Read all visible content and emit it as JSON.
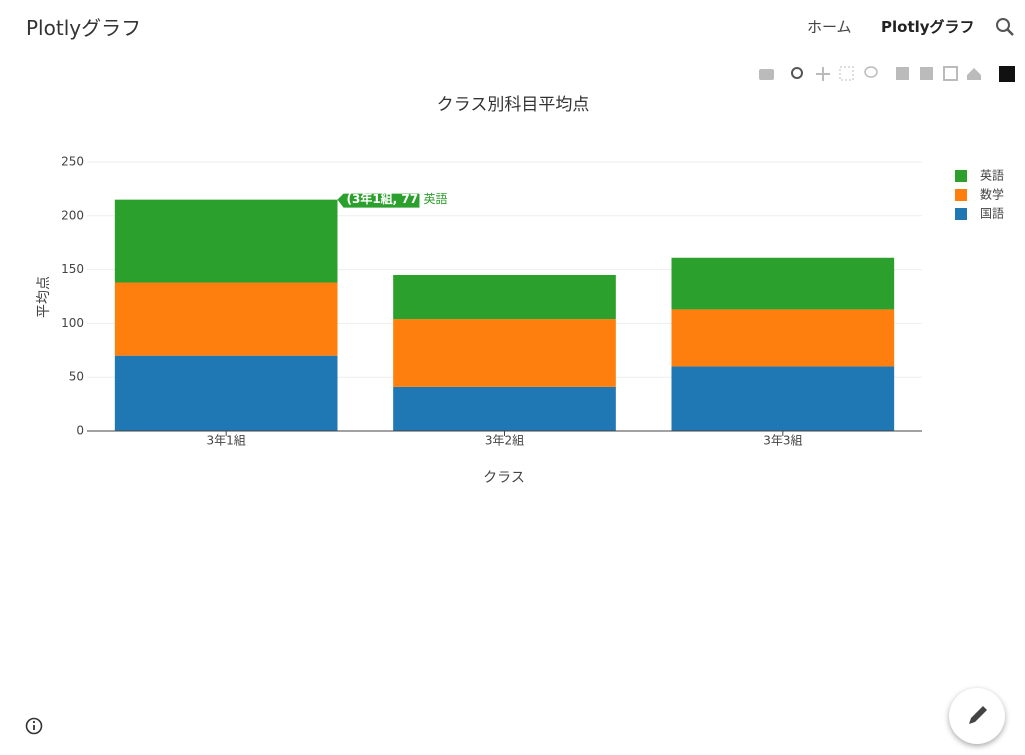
{
  "header": {
    "brand": "Plotlyグラフ",
    "nav": [
      "ホーム",
      "Plotlyグラフ"
    ]
  },
  "chart_data": {
    "type": "stacked_bar",
    "title": "クラス別科目平均点",
    "x_label": "クラス",
    "y_label": "平均点",
    "categories": [
      "3年1組",
      "3年2組",
      "3年3組"
    ],
    "series": [
      {
        "name": "国語",
        "color": "#1f77b4",
        "values": [
          70,
          41,
          60
        ]
      },
      {
        "name": "数学",
        "color": "#ff7f0e",
        "values": [
          68,
          63,
          53
        ]
      },
      {
        "name": "英語",
        "color": "#2ca02c",
        "values": [
          77,
          41,
          48
        ]
      }
    ],
    "ylim": [
      0,
      250
    ],
    "yticks": [
      0,
      50,
      100,
      150,
      200,
      250
    ],
    "grid": true,
    "legend": "top-right",
    "hover": {
      "label": "(3年1組, 77)",
      "series": "英語"
    }
  }
}
